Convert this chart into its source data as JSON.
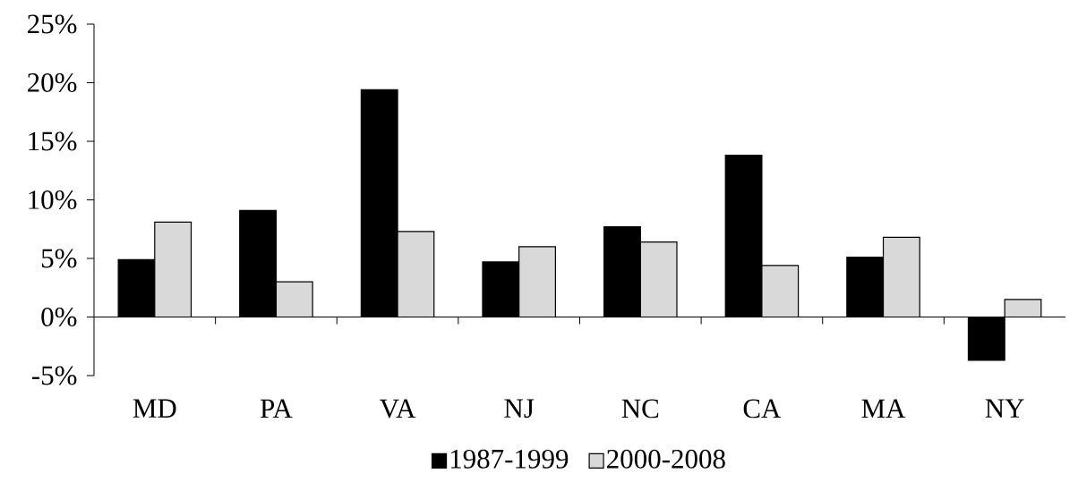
{
  "chart_data": {
    "type": "bar",
    "categories": [
      "MD",
      "PA",
      "VA",
      "NJ",
      "NC",
      "CA",
      "MA",
      "NY"
    ],
    "series": [
      {
        "name": "1987-1999",
        "color": "#000000",
        "values": [
          4.9,
          9.1,
          19.4,
          4.7,
          7.7,
          13.8,
          5.1,
          -3.7
        ]
      },
      {
        "name": "2000-2008",
        "color": "#d9d9d9",
        "values": [
          8.1,
          3.0,
          7.3,
          6.0,
          6.4,
          4.4,
          6.8,
          1.5
        ]
      }
    ],
    "ylim": [
      -5,
      25
    ],
    "yticks": [
      {
        "value": -5,
        "label": "-5%"
      },
      {
        "value": 0,
        "label": "0%"
      },
      {
        "value": 5,
        "label": "5%"
      },
      {
        "value": 10,
        "label": "10%"
      },
      {
        "value": 15,
        "label": "15%"
      },
      {
        "value": 20,
        "label": "20%"
      },
      {
        "value": 25,
        "label": "25%"
      }
    ],
    "legend": "bottom"
  }
}
